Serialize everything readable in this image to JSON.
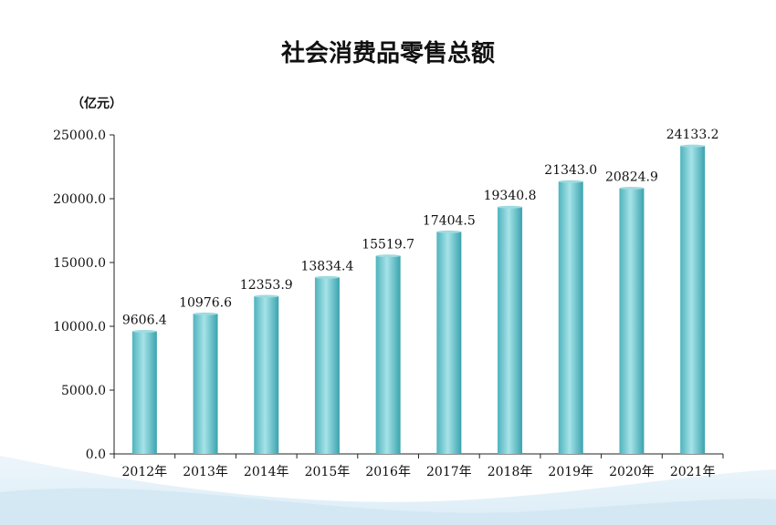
{
  "chart_data": {
    "type": "bar",
    "title": "社会消费品零售总额",
    "unit_label": "（亿元）",
    "categories": [
      "2012年",
      "2013年",
      "2014年",
      "2015年",
      "2016年",
      "2017年",
      "2018年",
      "2019年",
      "2020年",
      "2021年"
    ],
    "values": [
      9606.4,
      10976.6,
      12353.9,
      13834.4,
      15519.7,
      17404.5,
      19340.8,
      21343.0,
      20824.9,
      24133.2
    ],
    "value_labels": [
      "9606.4",
      "10976.6",
      "12353.9",
      "13834.4",
      "15519.7",
      "17404.5",
      "19340.8",
      "21343.0",
      "20824.9",
      "24133.2"
    ],
    "y_ticks": [
      "0.0",
      "5000.0",
      "10000.0",
      "15000.0",
      "20000.0",
      "25000.0"
    ],
    "y_tick_values": [
      0,
      5000,
      10000,
      15000,
      20000,
      25000
    ],
    "ylim": [
      0,
      25000
    ],
    "grid": false,
    "bar_color": "#5fc3cb"
  }
}
